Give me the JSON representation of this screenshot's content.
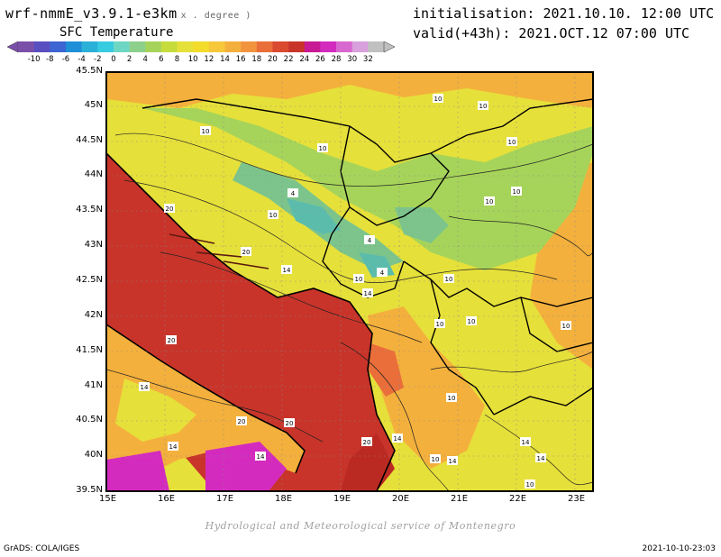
{
  "header": {
    "model": "wrf-nmmE_v3.9.1-e3km",
    "units": "x . degree )",
    "field": "SFC Temperature",
    "init": "initialisation: 2021.10.10. 12:00 UTC",
    "valid": "valid(+43h): 2021.OCT.12 07:00 UTC"
  },
  "colorbar": {
    "labels": [
      "-10",
      "-8",
      "-6",
      "-4",
      "-2",
      "0",
      "2",
      "4",
      "6",
      "8",
      "10",
      "12",
      "14",
      "16",
      "18",
      "20",
      "22",
      "24",
      "26",
      "28",
      "30",
      "32"
    ],
    "colors": [
      "#7a4fa8",
      "#5a4fc0",
      "#3c64d2",
      "#1f8fd8",
      "#2bb0d8",
      "#37cbe0",
      "#6ed7c4",
      "#8cd08c",
      "#a6d45a",
      "#c6dc3c",
      "#e6e03a",
      "#f3dc2c",
      "#f6c83a",
      "#f4b03c",
      "#f2943e",
      "#ea6e3a",
      "#d94a30",
      "#c8342a",
      "#c81a94",
      "#d42bbf",
      "#d868cf",
      "#d8a0dc",
      "#c0c0c0"
    ]
  },
  "map": {
    "lat_labels": [
      "45.5N",
      "45N",
      "44.5N",
      "44N",
      "43.5N",
      "43N",
      "42.5N",
      "42N",
      "41.5N",
      "41N",
      "40.5N",
      "40N",
      "39.5N"
    ],
    "lon_labels": [
      "15E",
      "16E",
      "17E",
      "18E",
      "19E",
      "20E",
      "21E",
      "22E",
      "23E"
    ],
    "colors": {
      "sea": "#c8342a",
      "sea_deep": "#bb2a22",
      "warm_land": "#ea6e3a",
      "orange": "#f4b03c",
      "yellow": "#e6e03a",
      "lime": "#a6d45a",
      "green": "#7cc48c",
      "teal": "#5cbcac",
      "magenta": "#d42bbf"
    },
    "contour_labels": [
      "10",
      "10",
      "10",
      "10",
      "10",
      "10",
      "10",
      "10",
      "10",
      "10",
      "10",
      "10",
      "10",
      "10",
      "10",
      "10",
      "4",
      "4",
      "4",
      "14",
      "14",
      "14",
      "14",
      "14",
      "14",
      "14",
      "14",
      "14",
      "20",
      "20",
      "20",
      "20",
      "20",
      "20"
    ]
  },
  "footer": {
    "credit": "Hydrological and Meteorological service of Montenegro",
    "grads": "GrADS: COLA/IGES",
    "timestamp": "2021-10-10-23:03"
  }
}
